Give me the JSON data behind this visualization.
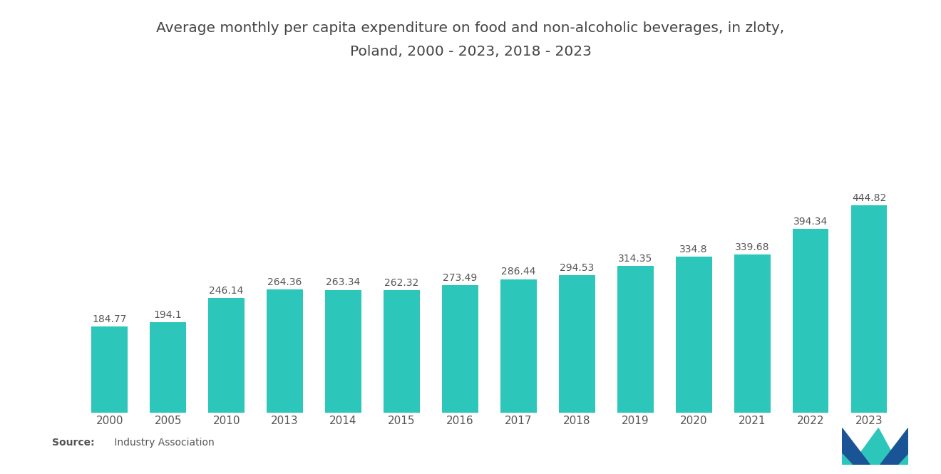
{
  "title_line1": "Average monthly per capita expenditure on food and non-alcoholic beverages, in zloty,",
  "title_line2": "Poland, 2000 - 2023, 2018 - 2023",
  "categories": [
    "2000",
    "2005",
    "2010",
    "2013",
    "2014",
    "2015",
    "2016",
    "2017",
    "2018",
    "2019",
    "2020",
    "2021",
    "2022",
    "2023"
  ],
  "values": [
    184.77,
    194.1,
    246.14,
    264.36,
    263.34,
    262.32,
    273.49,
    286.44,
    294.53,
    314.35,
    334.8,
    339.68,
    394.34,
    444.82
  ],
  "bar_color": "#2DC6BA",
  "background_color": "#ffffff",
  "title_fontsize": 14.5,
  "label_fontsize": 10,
  "tick_fontsize": 11,
  "ylim": [
    0,
    530
  ],
  "bar_width": 0.62
}
